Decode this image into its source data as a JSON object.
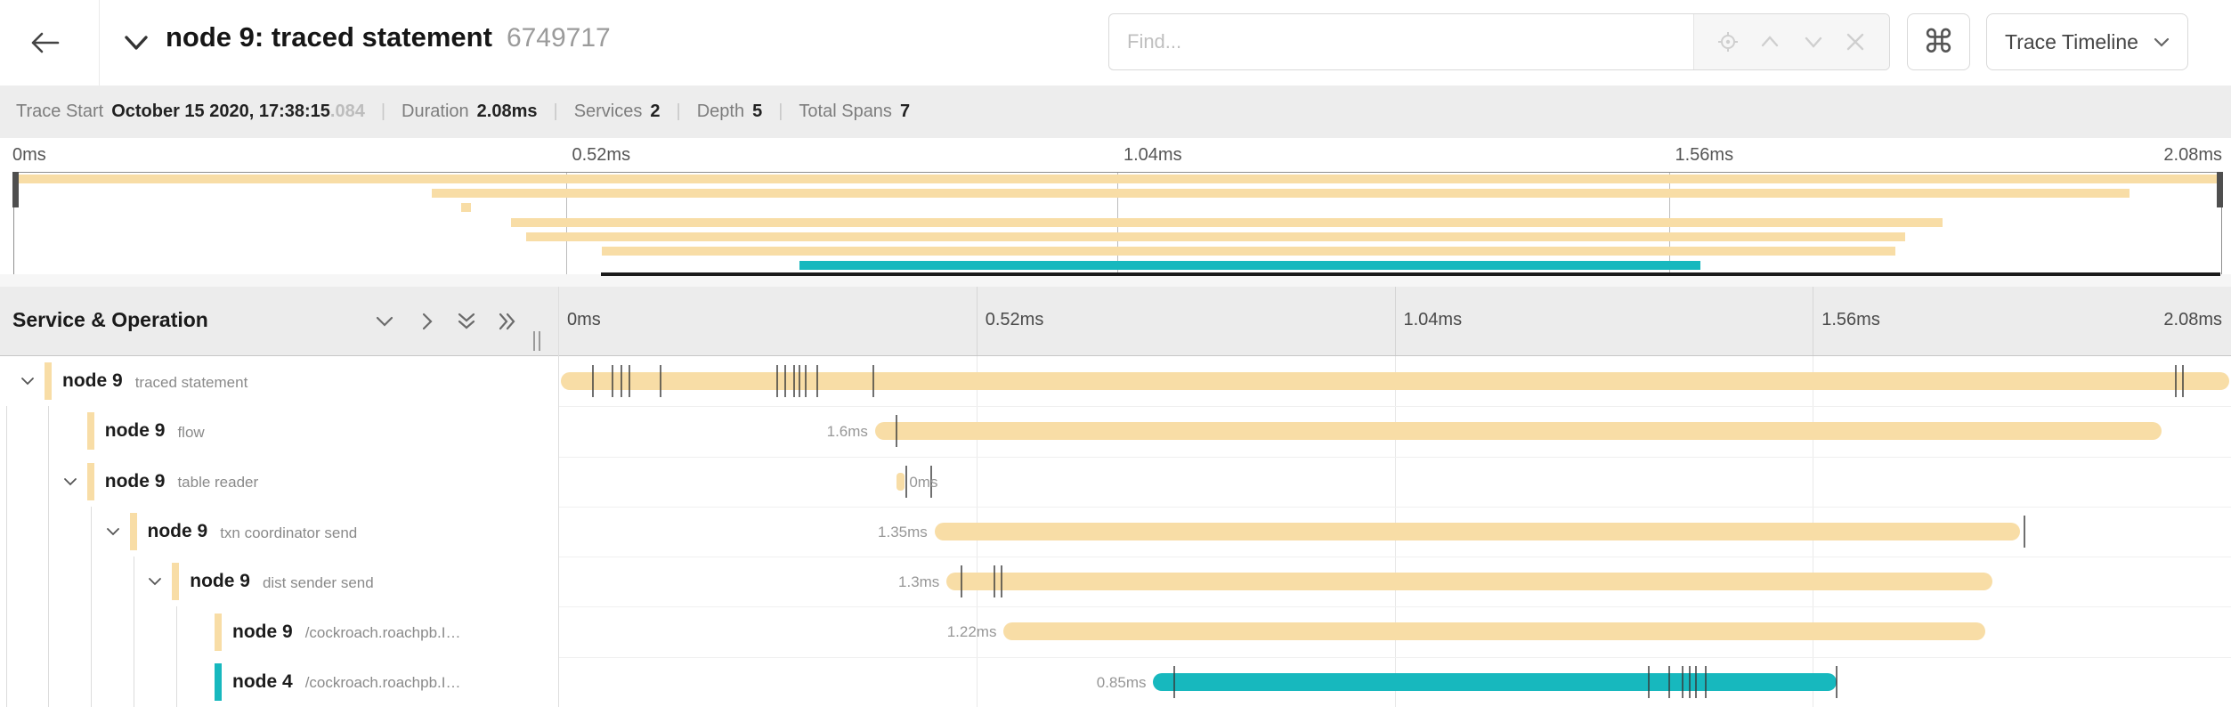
{
  "colors": {
    "tan": "#F8DDA6",
    "teal": "#17B8BE"
  },
  "header": {
    "back_icon": "arrow-left",
    "title": "node 9: traced statement",
    "trace_id": "6749717",
    "find_placeholder": "Find...",
    "find_tools": [
      "locate-icon",
      "chevron-up-icon",
      "chevron-down-icon",
      "close-icon"
    ],
    "shortcut_button": "⌘",
    "view_dropdown_label": "Trace Timeline"
  },
  "info_bar": {
    "trace_start_label": "Trace Start",
    "trace_start_value": "October 15 2020, 17:38:15",
    "trace_start_fraction": ".084",
    "duration_label": "Duration",
    "duration_value": "2.08ms",
    "services_label": "Services",
    "services_value": "2",
    "depth_label": "Depth",
    "depth_value": "5",
    "total_spans_label": "Total Spans",
    "total_spans_value": "7",
    "separator": "|"
  },
  "axis": {
    "total_ms": 2.08,
    "tick_labels": [
      "0ms",
      "0.52ms",
      "1.04ms",
      "1.56ms",
      "2.08ms"
    ]
  },
  "timeline_header": {
    "left_title": "Service & Operation"
  },
  "rows": [
    {
      "service": "node 9",
      "operation": "traced statement",
      "color": "#F8DDA6",
      "depth": 0,
      "expander": "open",
      "start_ms": 0.003,
      "duration_ms": 2.075,
      "duration_label": "",
      "label_side": "none",
      "ticks_ms": [
        0.042,
        0.066,
        0.078,
        0.087,
        0.126,
        0.271,
        0.281,
        0.292,
        0.299,
        0.307,
        0.321,
        0.391,
        2.01,
        2.019
      ]
    },
    {
      "service": "node 9",
      "operation": "flow",
      "color": "#F8DDA6",
      "depth": 1,
      "expander": null,
      "start_ms": 0.394,
      "duration_ms": 1.6,
      "duration_label": "1.6ms",
      "label_side": "left",
      "ticks_ms": [
        0.42
      ]
    },
    {
      "service": "node 9",
      "operation": "table reader",
      "color": "#F8DDA6",
      "depth": 1,
      "expander": "open",
      "start_ms": 0.421,
      "duration_ms": 0.01,
      "duration_label": "0ms",
      "label_side": "right",
      "ticks_ms": [
        0.432,
        0.463
      ]
    },
    {
      "service": "node 9",
      "operation": "txn coordinator send",
      "color": "#F8DDA6",
      "depth": 2,
      "expander": "open",
      "start_ms": 0.468,
      "duration_ms": 1.35,
      "duration_label": "1.35ms",
      "label_side": "left",
      "ticks_ms": [
        1.822
      ]
    },
    {
      "service": "node 9",
      "operation": "dist sender send",
      "color": "#F8DDA6",
      "depth": 3,
      "expander": "open",
      "start_ms": 0.483,
      "duration_ms": 1.3,
      "duration_label": "1.3ms",
      "label_side": "left",
      "ticks_ms": [
        0.5,
        0.541,
        0.55
      ]
    },
    {
      "service": "node 9",
      "operation": "/cockroach.roachpb.I…",
      "color": "#F8DDA6",
      "depth": 4,
      "expander": null,
      "start_ms": 0.554,
      "duration_ms": 1.22,
      "duration_label": "1.22ms",
      "label_side": "left",
      "ticks_ms": []
    },
    {
      "service": "node 4",
      "operation": "/cockroach.roachpb.I…",
      "color": "#17B8BE",
      "depth": 4,
      "expander": null,
      "start_ms": 0.74,
      "duration_ms": 0.85,
      "duration_label": "0.85ms",
      "label_side": "left",
      "ticks_ms": [
        0.765,
        1.355,
        1.38,
        1.397,
        1.406,
        1.414,
        1.426,
        1.589
      ]
    }
  ]
}
